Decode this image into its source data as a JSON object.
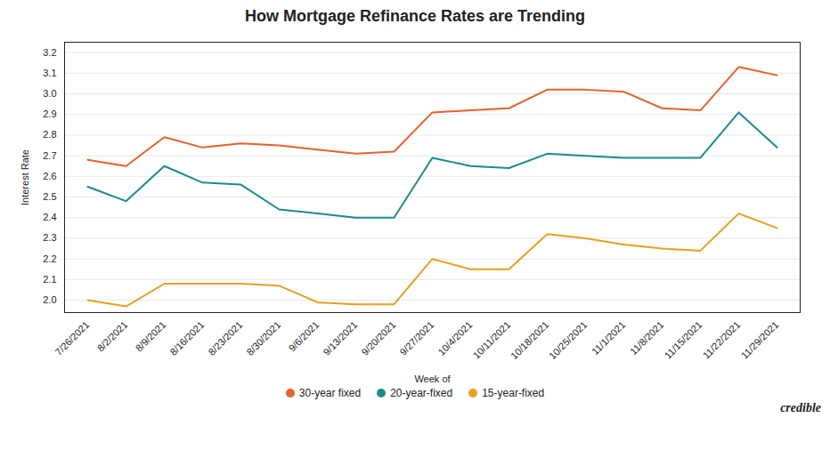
{
  "chart_data": {
    "type": "line",
    "title": "How Mortgage Refinance Rates are Trending",
    "xlabel": "Week of",
    "ylabel": "Interest Rate",
    "categories": [
      "7/26/2021",
      "8/2/2021",
      "8/9/2021",
      "8/16/2021",
      "8/23/2021",
      "8/30/2021",
      "9/6/2021",
      "9/13/2021",
      "9/20/2021",
      "9/27/2021",
      "10/4/2021",
      "10/11/2021",
      "10/18/2021",
      "10/25/2021",
      "11/1/2021",
      "11/8/2021",
      "11/15/2021",
      "11/22/2021",
      "11/29/2021"
    ],
    "series": [
      {
        "name": "30-year fixed",
        "color": "#E8622A",
        "values": [
          2.68,
          2.65,
          2.79,
          2.74,
          2.76,
          2.75,
          2.73,
          2.71,
          2.72,
          2.91,
          2.92,
          2.93,
          3.02,
          3.02,
          3.01,
          2.93,
          2.92,
          3.13,
          3.09
        ]
      },
      {
        "name": "20-year-fixed",
        "color": "#1A8C8C",
        "values": [
          2.55,
          2.48,
          2.65,
          2.57,
          2.56,
          2.44,
          2.42,
          2.4,
          2.4,
          2.69,
          2.65,
          2.64,
          2.71,
          2.7,
          2.69,
          2.69,
          2.69,
          2.91,
          2.74
        ]
      },
      {
        "name": "15-year-fixed",
        "color": "#E8A020",
        "values": [
          2.0,
          1.97,
          2.08,
          2.08,
          2.08,
          2.07,
          1.99,
          1.98,
          1.98,
          2.2,
          2.15,
          2.15,
          2.32,
          2.3,
          2.27,
          2.25,
          2.24,
          2.42,
          2.35
        ]
      }
    ],
    "ylim": [
      1.94,
      3.25
    ],
    "yticks": [
      {
        "value": 2.0,
        "label": "2.0"
      },
      2.1,
      2.2,
      2.3,
      2.4,
      2.5,
      2.6,
      2.7,
      2.8,
      2.9,
      {
        "value": 3.0,
        "label": "3.0"
      },
      3.1,
      3.2
    ],
    "grid": true,
    "legend": "bottom",
    "annotations": [
      "credible"
    ]
  }
}
